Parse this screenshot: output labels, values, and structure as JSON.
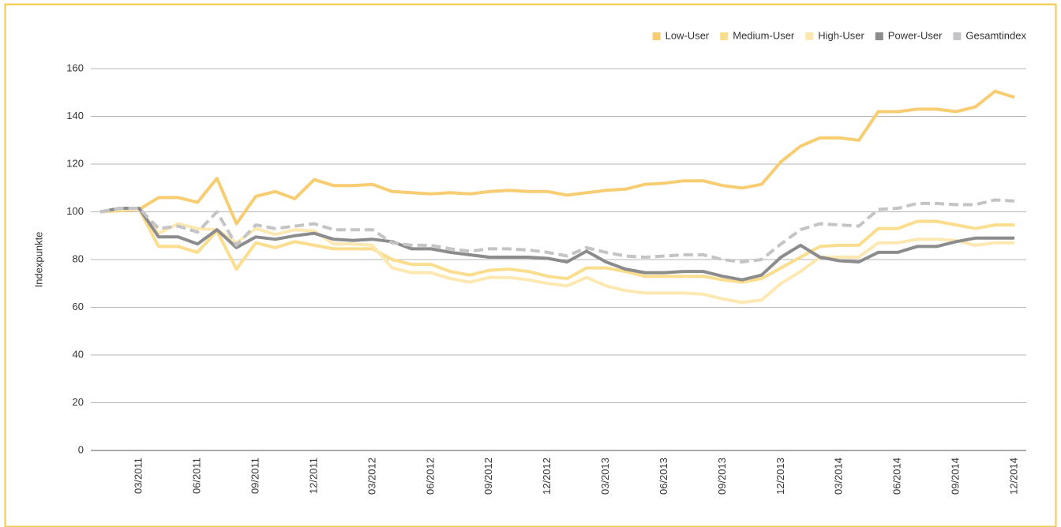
{
  "chart_data": {
    "type": "line",
    "y_label": "Indexpunkte",
    "categories": [
      null,
      null,
      "03/2011",
      null,
      null,
      "06/2011",
      null,
      null,
      "09/2011",
      null,
      null,
      "12/2011",
      null,
      null,
      "03/2012",
      null,
      null,
      "06/2012",
      null,
      null,
      "09/2012",
      null,
      null,
      "12/2012",
      null,
      null,
      "03/2013",
      null,
      null,
      "06/2013",
      null,
      null,
      "09/2013",
      null,
      null,
      "12/2013",
      null,
      null,
      "03/2014",
      null,
      null,
      "06/2014",
      null,
      null,
      "09/2014",
      null,
      null,
      "12/2014"
    ],
    "series": [
      {
        "name": "Low-User",
        "color": "#f8cd72",
        "linestyle": "solid",
        "values": [
          100,
          100.5,
          101,
          106,
          106,
          104,
          114,
          95,
          106.5,
          108.5,
          105.5,
          113.5,
          111,
          111,
          111.5,
          108.5,
          108,
          107.5,
          108,
          107.5,
          108.5,
          109,
          108.5,
          108.5,
          107,
          108,
          109,
          109.5,
          111.5,
          112,
          113,
          113,
          111,
          110,
          111.5,
          121,
          127.5,
          131,
          131,
          130,
          142,
          142,
          143,
          143,
          142,
          144,
          150.5,
          148
        ]
      },
      {
        "name": "Medium-User",
        "color": "#fbdd8e",
        "linestyle": "solid",
        "values": [
          100,
          101,
          101,
          85.5,
          85.5,
          83,
          92,
          76,
          87,
          85,
          87.5,
          86,
          84.5,
          84.5,
          84.5,
          80,
          78,
          78,
          75,
          73.5,
          75.5,
          76,
          75,
          73,
          72,
          76.5,
          76.5,
          75,
          73,
          73,
          73,
          73,
          71.5,
          70.5,
          72,
          76.5,
          81,
          85.5,
          86,
          86,
          93,
          93,
          96,
          96,
          94.5,
          93,
          94.5,
          94.5
        ]
      },
      {
        "name": "High-User",
        "color": "#fde8b2",
        "linestyle": "solid",
        "values": [
          100,
          101,
          101,
          91,
          95,
          93,
          92.5,
          87,
          93,
          90.5,
          92.5,
          92,
          86.5,
          86.5,
          86,
          76.5,
          74.5,
          74.5,
          72,
          70.5,
          72.5,
          72.5,
          71.5,
          70,
          69,
          72.5,
          69,
          67,
          66,
          66,
          66,
          65.5,
          63.5,
          62,
          63,
          70,
          75,
          81,
          81,
          81,
          87,
          87,
          88.5,
          88.5,
          88,
          86,
          87,
          87
        ]
      },
      {
        "name": "Power-User",
        "color": "#8c8c8e",
        "linestyle": "solid",
        "values": [
          100,
          101.5,
          101.5,
          89.5,
          89.5,
          86.5,
          92.5,
          85,
          89.5,
          88.5,
          90,
          91,
          88.5,
          88,
          88.5,
          87.5,
          84.5,
          84.5,
          83,
          82,
          81,
          81,
          81,
          80.5,
          79,
          83.5,
          79,
          76,
          74.5,
          74.5,
          75,
          75,
          73,
          71.5,
          73.5,
          81,
          86,
          81,
          79.5,
          79,
          83,
          83,
          85.5,
          85.5,
          87.5,
          89,
          89,
          89
        ]
      },
      {
        "name": "Gesamtindex",
        "color": "#c4c4c6",
        "linestyle": "dashed",
        "values": [
          100,
          101.5,
          101.5,
          93,
          94,
          91.5,
          100,
          86,
          94.5,
          93,
          94,
          95,
          92.5,
          92.5,
          92.5,
          87,
          86,
          86,
          84.5,
          83.5,
          84.5,
          84.5,
          84,
          83,
          81.5,
          85,
          83,
          81.5,
          81,
          81.5,
          82,
          82,
          80,
          79,
          80,
          86.5,
          92.5,
          95,
          94.5,
          94,
          101,
          101.5,
          103.5,
          103.5,
          103,
          103,
          105,
          104.5
        ]
      }
    ],
    "ylim": [
      0,
      160
    ],
    "yticks": [
      0,
      20,
      40,
      60,
      80,
      100,
      120,
      140,
      160
    ],
    "grid": true,
    "legend": "upper right"
  }
}
